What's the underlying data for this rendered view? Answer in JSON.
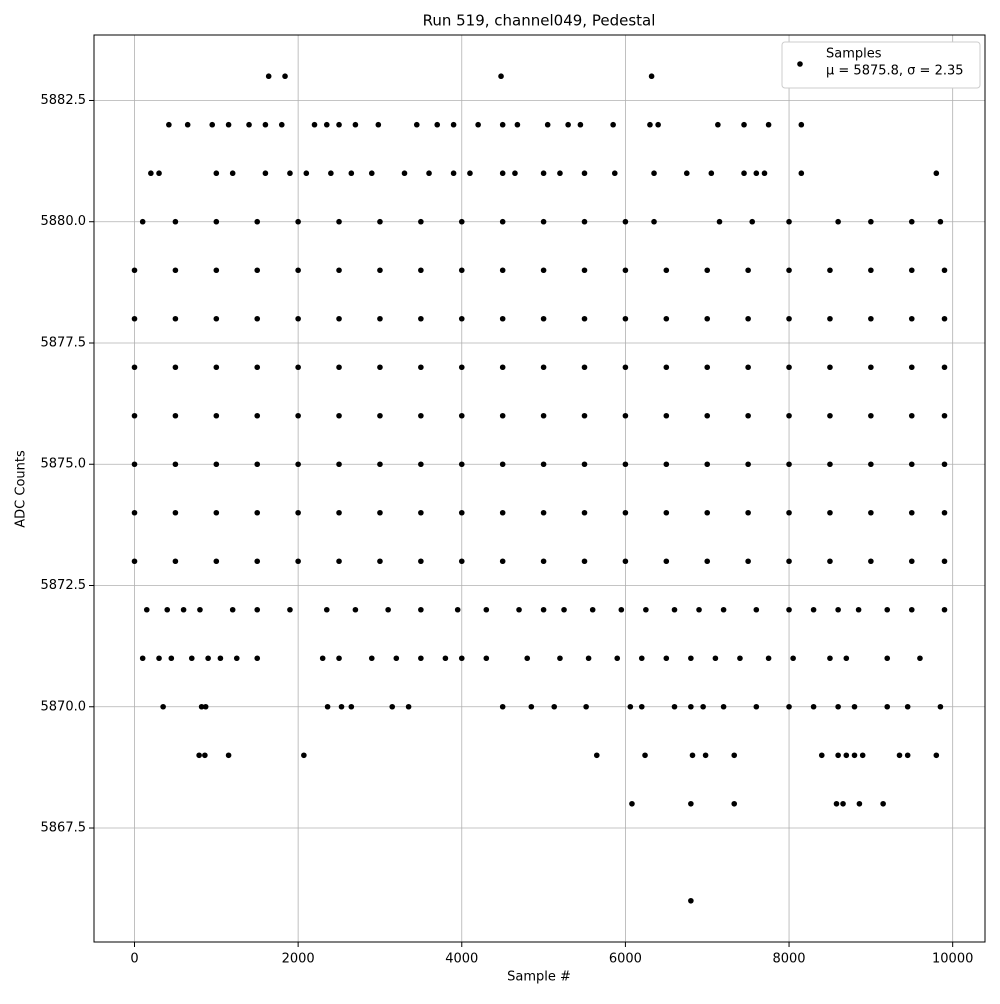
{
  "chart_data": {
    "type": "scatter",
    "title": "Run 519, channel049, Pedestal",
    "xlabel": "Sample #",
    "ylabel": "ADC Counts",
    "xlim": [
      -495,
      10395
    ],
    "ylim": [
      5865.15,
      5883.85
    ],
    "xticks": [
      0,
      2000,
      4000,
      6000,
      8000,
      10000
    ],
    "yticks": [
      5867.5,
      {
        "value": 5870,
        "label": "5870.0"
      },
      5872.5,
      {
        "value": 5875,
        "label": "5875.0"
      },
      5877.5,
      {
        "value": 5880,
        "label": "5880.0"
      },
      5882.5
    ],
    "grid": true,
    "legend": "upper right",
    "legend_note": "μ = 5875.8, σ = 2.35",
    "x": [
      1640,
      1840,
      4480,
      6320,
      6800,
      6080,
      6800,
      7330,
      8580,
      8660,
      8860,
      9150,
      790,
      860,
      1150,
      2070,
      5650,
      6240,
      6820,
      6980,
      7330,
      8400,
      8600,
      8700,
      8800,
      8900,
      9350,
      9450,
      9800,
      350,
      820,
      870,
      2360,
      2530,
      2650,
      3150,
      3350,
      4500,
      4850,
      5130,
      5520,
      6060,
      6200,
      6600,
      6800,
      6950,
      7200,
      7600,
      8000,
      8300,
      8600,
      8800,
      9200,
      9450,
      9850,
      420,
      650,
      950,
      1150,
      1400,
      1600,
      1800,
      2200,
      2350,
      2500,
      2700,
      2980,
      3450,
      3700,
      3900,
      4200,
      4500,
      4680,
      5050,
      5300,
      5450,
      5850,
      6300,
      6400,
      7130,
      7450,
      7750,
      8150,
      200,
      300,
      1000,
      1200,
      1600,
      1900,
      2100,
      2400,
      2650,
      2900,
      3300,
      3600,
      3900,
      4100,
      4500,
      4650,
      5000,
      5200,
      5500,
      5870,
      6350,
      6750,
      7050,
      7450,
      7600,
      7700,
      8150,
      9800,
      100,
      300,
      450,
      700,
      900,
      1050,
      1250,
      1500,
      2300,
      2500,
      2900,
      3200,
      3500,
      3800,
      4000,
      4300,
      4800,
      5200,
      5550,
      5900,
      6200,
      6500,
      6800,
      7100,
      7400,
      7750,
      8050,
      8500,
      8700,
      9200,
      9600,
      150,
      400,
      600,
      800,
      1200,
      1500,
      1900,
      2350,
      2700,
      3100,
      3500,
      3950,
      4300,
      4700,
      5000,
      5250,
      5600,
      5950,
      6250,
      6600,
      6900,
      7200,
      7600,
      8000,
      8300,
      8600,
      8850,
      9200,
      9500,
      9900,
      0,
      500,
      1000,
      1500,
      2000,
      2500,
      3000,
      3500,
      4000,
      4500,
      5000,
      5500,
      6000,
      6500,
      7000,
      7500,
      8000,
      8500,
      9000,
      9500,
      9900,
      0,
      500,
      1000,
      1500,
      2000,
      2500,
      3000,
      3500,
      4000,
      4500,
      5000,
      5500,
      6000,
      6500,
      7000,
      7500,
      8000,
      8500,
      9000,
      9500,
      9900,
      0,
      500,
      1000,
      1500,
      2000,
      2500,
      3000,
      3500,
      4000,
      4500,
      5000,
      5500,
      6000,
      6500,
      7000,
      7500,
      8000,
      8500,
      9000,
      9500,
      9900,
      0,
      500,
      1000,
      1500,
      2000,
      2500,
      3000,
      3500,
      4000,
      4500,
      5000,
      5500,
      6000,
      6500,
      7000,
      7500,
      8000,
      8500,
      9000,
      9500,
      9900,
      0,
      500,
      1000,
      1500,
      2000,
      2500,
      3000,
      3500,
      4000,
      4500,
      5000,
      5500,
      6000,
      6500,
      7000,
      7500,
      8000,
      8500,
      9000,
      9500,
      9900,
      0,
      500,
      1000,
      1500,
      2000,
      2500,
      3000,
      3500,
      4000,
      4500,
      5000,
      5500,
      6000,
      6500,
      7000,
      7500,
      8000,
      8500,
      9000,
      9500,
      9900,
      0,
      500,
      1000,
      1500,
      2000,
      2500,
      3000,
      3500,
      4000,
      4500,
      5000,
      5500,
      6000,
      6500,
      7000,
      7500,
      8000,
      8500,
      9000,
      9500,
      9900,
      100,
      500,
      1000,
      1500,
      2000,
      2500,
      3000,
      3500,
      4000,
      4500,
      5000,
      5500,
      6000,
      6350,
      7150,
      7550,
      8000,
      8600,
      9000,
      9500,
      9850
    ],
    "series": [
      {
        "name": "Samples",
        "color": "#000000",
        "values": [
          5883,
          5883,
          5883,
          5883,
          5866,
          5868,
          5868,
          5868,
          5868,
          5868,
          5868,
          5868,
          5869,
          5869,
          5869,
          5869,
          5869,
          5869,
          5869,
          5869,
          5869,
          5869,
          5869,
          5869,
          5869,
          5869,
          5869,
          5869,
          5869,
          5870,
          5870,
          5870,
          5870,
          5870,
          5870,
          5870,
          5870,
          5870,
          5870,
          5870,
          5870,
          5870,
          5870,
          5870,
          5870,
          5870,
          5870,
          5870,
          5870,
          5870,
          5870,
          5870,
          5870,
          5870,
          5870,
          5882,
          5882,
          5882,
          5882,
          5882,
          5882,
          5882,
          5882,
          5882,
          5882,
          5882,
          5882,
          5882,
          5882,
          5882,
          5882,
          5882,
          5882,
          5882,
          5882,
          5882,
          5882,
          5882,
          5882,
          5882,
          5882,
          5882,
          5882,
          5881,
          5881,
          5881,
          5881,
          5881,
          5881,
          5881,
          5881,
          5881,
          5881,
          5881,
          5881,
          5881,
          5881,
          5881,
          5881,
          5881,
          5881,
          5881,
          5881,
          5881,
          5881,
          5881,
          5881,
          5881,
          5881,
          5881,
          5881,
          5871,
          5871,
          5871,
          5871,
          5871,
          5871,
          5871,
          5871,
          5871,
          5871,
          5871,
          5871,
          5871,
          5871,
          5871,
          5871,
          5871,
          5871,
          5871,
          5871,
          5871,
          5871,
          5871,
          5871,
          5871,
          5871,
          5871,
          5871,
          5871,
          5871,
          5871,
          5872,
          5872,
          5872,
          5872,
          5872,
          5872,
          5872,
          5872,
          5872,
          5872,
          5872,
          5872,
          5872,
          5872,
          5872,
          5872,
          5872,
          5872,
          5872,
          5872,
          5872,
          5872,
          5872,
          5872,
          5872,
          5872,
          5872,
          5872,
          5872,
          5872,
          5873,
          5873,
          5873,
          5873,
          5873,
          5873,
          5873,
          5873,
          5873,
          5873,
          5873,
          5873,
          5873,
          5873,
          5873,
          5873,
          5873,
          5873,
          5873,
          5873,
          5873,
          5874,
          5874,
          5874,
          5874,
          5874,
          5874,
          5874,
          5874,
          5874,
          5874,
          5874,
          5874,
          5874,
          5874,
          5874,
          5874,
          5874,
          5874,
          5874,
          5874,
          5874,
          5875,
          5875,
          5875,
          5875,
          5875,
          5875,
          5875,
          5875,
          5875,
          5875,
          5875,
          5875,
          5875,
          5875,
          5875,
          5875,
          5875,
          5875,
          5875,
          5875,
          5875,
          5876,
          5876,
          5876,
          5876,
          5876,
          5876,
          5876,
          5876,
          5876,
          5876,
          5876,
          5876,
          5876,
          5876,
          5876,
          5876,
          5876,
          5876,
          5876,
          5876,
          5876,
          5877,
          5877,
          5877,
          5877,
          5877,
          5877,
          5877,
          5877,
          5877,
          5877,
          5877,
          5877,
          5877,
          5877,
          5877,
          5877,
          5877,
          5877,
          5877,
          5877,
          5877,
          5878,
          5878,
          5878,
          5878,
          5878,
          5878,
          5878,
          5878,
          5878,
          5878,
          5878,
          5878,
          5878,
          5878,
          5878,
          5878,
          5878,
          5878,
          5878,
          5878,
          5878,
          5879,
          5879,
          5879,
          5879,
          5879,
          5879,
          5879,
          5879,
          5879,
          5879,
          5879,
          5879,
          5879,
          5879,
          5879,
          5879,
          5879,
          5879,
          5879,
          5879,
          5879,
          5880,
          5880,
          5880,
          5880,
          5880,
          5880,
          5880,
          5880,
          5880,
          5880,
          5880,
          5880,
          5880,
          5880,
          5880,
          5880,
          5880,
          5880,
          5880,
          5880,
          5880
        ]
      }
    ]
  }
}
